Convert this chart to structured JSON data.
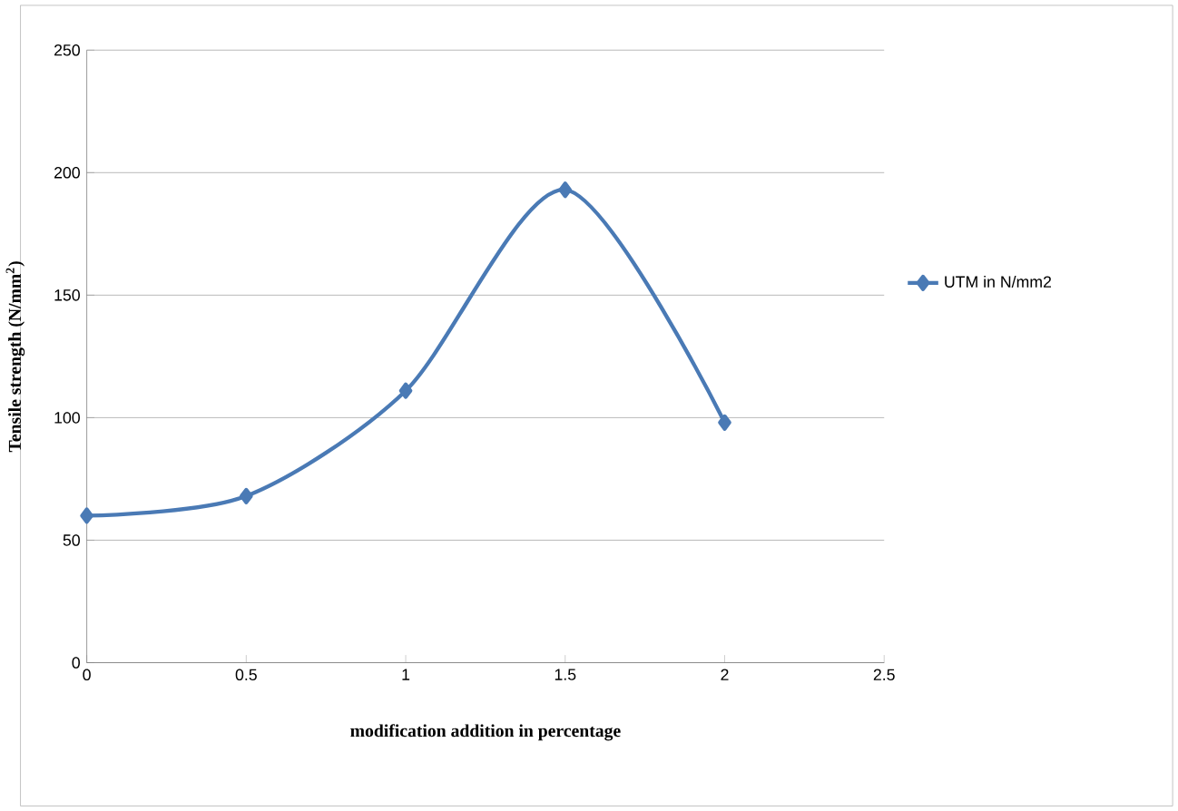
{
  "chart_data": {
    "type": "line",
    "xlabel": "modification addition in percentage",
    "ylabel": "Tensile strength (N/mm$^{2}$)",
    "x": [
      0,
      0.5,
      1,
      1.5,
      2
    ],
    "series": [
      {
        "name": "UTM in N/mm2",
        "color": "#4a7ab5",
        "values": [
          60,
          68,
          111,
          193,
          98
        ]
      }
    ],
    "xlim": [
      0,
      2.5
    ],
    "xticks": [
      0,
      0.5,
      1,
      1.5,
      2,
      2.5
    ],
    "ylim": [
      0,
      250
    ],
    "yticks": [
      0,
      50,
      100,
      150,
      200,
      250
    ],
    "grid": "y",
    "legend": "right",
    "marker": "diamond",
    "line_style": "solid"
  }
}
